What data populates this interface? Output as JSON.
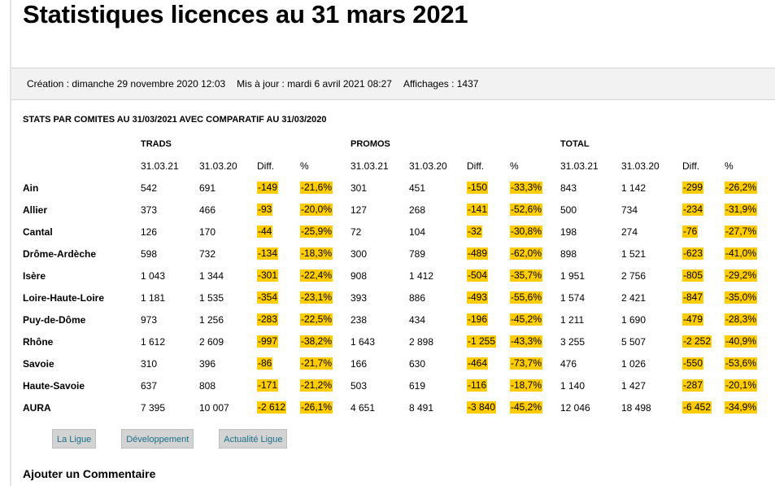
{
  "page": {
    "title": "Statistiques licences au 31 mars 2021"
  },
  "meta": {
    "creation": "Création : dimanche 29 novembre 2020 12:03",
    "updated": "Mis à jour : mardi 6 avril 2021 08:27",
    "views": "Affichages : 1437"
  },
  "stats": {
    "title": "STATS PAR COMITES AU 31/03/2021 AVEC COMPARATIF AU 31/03/2020",
    "groups": [
      "TRADS",
      "PROMOS",
      "TOTAL"
    ],
    "subheaders": [
      "31.03.21",
      "31.03.20",
      "Diff.",
      "%"
    ],
    "rows": [
      {
        "name": "Ain",
        "cells": [
          "542",
          "691",
          "-149",
          "-21,6%",
          "301",
          "451",
          "-150",
          "-33,3%",
          "843",
          "1 142",
          "-299",
          "-26,2%"
        ]
      },
      {
        "name": "Allier",
        "cells": [
          "373",
          "466",
          "-93",
          "-20,0%",
          "127",
          "268",
          "-141",
          "-52,6%",
          "500",
          "734",
          "-234",
          "-31,9%"
        ]
      },
      {
        "name": "Cantal",
        "cells": [
          "126",
          "170",
          "-44",
          "-25,9%",
          "72",
          "104",
          "-32",
          "-30,8%",
          "198",
          "274",
          "-76",
          "-27,7%"
        ]
      },
      {
        "name": "Drôme-Ardèche",
        "cells": [
          "598",
          "732",
          "-134",
          "-18,3%",
          "300",
          "789",
          "-489",
          "-62,0%",
          "898",
          "1 521",
          "-623",
          "-41,0%"
        ]
      },
      {
        "name": "Isère",
        "cells": [
          "1 043",
          "1 344",
          "-301",
          "-22,4%",
          "908",
          "1 412",
          "-504",
          "-35,7%",
          "1 951",
          "2 756",
          "-805",
          "-29,2%"
        ]
      },
      {
        "name": "Loire-Haute-Loire",
        "cells": [
          "1 181",
          "1 535",
          "-354",
          "-23,1%",
          "393",
          "886",
          "-493",
          "-55,6%",
          "1 574",
          "2 421",
          "-847",
          "-35,0%"
        ]
      },
      {
        "name": "Puy-de-Dôme",
        "cells": [
          "973",
          "1 256",
          "-283",
          "-22,5%",
          "238",
          "434",
          "-196",
          "-45,2%",
          "1 211",
          "1 690",
          "-479",
          "-28,3%"
        ]
      },
      {
        "name": "Rhône",
        "cells": [
          "1 612",
          "2 609",
          "-997",
          "-38,2%",
          "1 643",
          "2 898",
          "-1 255",
          "-43,3%",
          "3 255",
          "5 507",
          "-2 252",
          "-40,9%"
        ]
      },
      {
        "name": "Savoie",
        "cells": [
          "310",
          "396",
          "-86",
          "-21,7%",
          "166",
          "630",
          "-464",
          "-73,7%",
          "476",
          "1 026",
          "-550",
          "-53,6%"
        ]
      },
      {
        "name": "Haute-Savoie",
        "cells": [
          "637",
          "808",
          "-171",
          "-21,2%",
          "503",
          "619",
          "-116",
          "-18,7%",
          "1 140",
          "1 427",
          "-287",
          "-20,1%"
        ]
      },
      {
        "name": "AURA",
        "cells": [
          "7 395",
          "10 007",
          "-2 612",
          "-26,1%",
          "4 651",
          "8 491",
          "-3 840",
          "-45,2%",
          "12 046",
          "18 498",
          "-6 452",
          "-34,9%"
        ]
      }
    ],
    "highlight_color": "#ffcc00"
  },
  "buttons": [
    "La Ligue",
    "Développement",
    "Actualité Ligue"
  ],
  "comment": {
    "title": "Ajouter un Commentaire"
  }
}
